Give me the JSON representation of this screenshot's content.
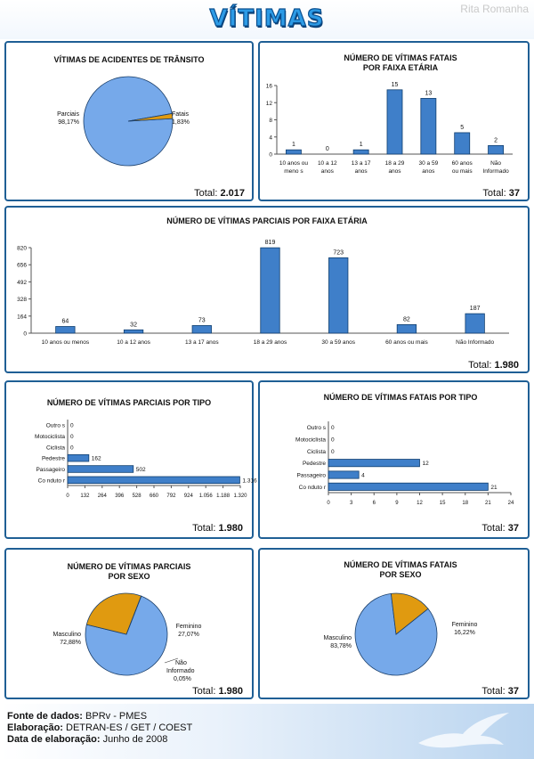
{
  "header": {
    "title": "VÍTIMAS",
    "watermark": "Rita Romanha"
  },
  "panels": {
    "p1": {
      "title_lines": [
        "VÍTIMAS DE ACIDENTES DE TRÂNSITO"
      ],
      "total_label": "Total:",
      "total_value": "2.017"
    },
    "p2": {
      "title_lines": [
        "NÚMERO DE VÍTIMAS FATAIS",
        "POR FAIXA ETÁRIA"
      ],
      "total_label": "Total:",
      "total_value": "37"
    },
    "p3": {
      "title_lines": [
        "NÚMERO DE VÍTIMAS PARCIAIS POR FAIXA ETÁRIA"
      ],
      "total_label": "Total:",
      "total_value": "1.980"
    },
    "p4": {
      "title_lines": [
        "NÚMERO DE VÍTIMAS PARCIAIS POR TIPO"
      ],
      "total_label": "Total:",
      "total_value": "1.980"
    },
    "p5": {
      "title_lines": [
        "NÚMERO DE VÍTIMAS FATAIS POR TIPO"
      ],
      "total_label": "Total:",
      "total_value": "37"
    },
    "p6": {
      "title_lines": [
        "NÚMERO DE VÍTIMAS PARCIAIS",
        "POR SEXO"
      ],
      "total_label": "Total:",
      "total_value": "1.980"
    },
    "p7": {
      "title_lines": [
        "NÚMERO DE VÍTIMAS FATAIS",
        "POR SEXO"
      ],
      "total_label": "Total:",
      "total_value": "37"
    }
  },
  "footer": {
    "source_label": "Fonte de dados:",
    "source_value": "BPRv - PMES",
    "prepared_label": "Elaboração:",
    "prepared_value": "DETRAN-ES / GET / COEST",
    "date_label": "Data de elaboração:",
    "date_value": "Junho de 2008"
  },
  "colors": {
    "bar": "#3f7fc9",
    "pie_main": "#76a9ea",
    "pie_secondary": "#e09a10",
    "border": "#1f5f95",
    "title_blue": "#2d9be6"
  },
  "chart_data": [
    {
      "type": "pie",
      "title": "VÍTIMAS DE ACIDENTES DE TRÂNSITO",
      "slices": [
        {
          "name": "Parciais",
          "label": "98,17%",
          "value": 98.17
        },
        {
          "name": "Fatais",
          "label": "1,83%",
          "value": 1.83
        }
      ]
    },
    {
      "type": "bar",
      "orientation": "vertical",
      "title": "NÚMERO DE VÍTIMAS FATAIS POR FAIXA ETÁRIA",
      "categories": [
        [
          "10 anos ou",
          "meno s"
        ],
        [
          "10 a 12",
          "anos"
        ],
        [
          "13 a 17",
          "anos"
        ],
        [
          "18 a 29",
          "anos"
        ],
        [
          "30 a 59",
          "anos"
        ],
        [
          "60 anos",
          "ou mais"
        ],
        [
          "Não",
          "Informado"
        ]
      ],
      "values": [
        1,
        0,
        1,
        15,
        13,
        5,
        2
      ],
      "value_labels": [
        "1",
        "0",
        "1",
        "15",
        "13",
        "5",
        "2"
      ],
      "yticks": [
        "0",
        "4",
        "8",
        "12",
        "16"
      ],
      "ylim": [
        0,
        16
      ]
    },
    {
      "type": "bar",
      "orientation": "vertical",
      "title": "NÚMERO DE VÍTIMAS PARCIAIS POR FAIXA ETÁRIA",
      "categories": [
        [
          "10 anos ou menos"
        ],
        [
          "10 a 12 anos"
        ],
        [
          "13 a 17 anos"
        ],
        [
          "18 a 29 anos"
        ],
        [
          "30 a 59 anos"
        ],
        [
          "60 anos ou mais"
        ],
        [
          "Não Informado"
        ]
      ],
      "values": [
        64,
        32,
        73,
        819,
        723,
        82,
        187
      ],
      "value_labels": [
        "64",
        "32",
        "73",
        "819",
        "723",
        "82",
        "187"
      ],
      "yticks": [
        "0",
        "164",
        "328",
        "492",
        "656",
        "820"
      ],
      "ylim": [
        0,
        820
      ]
    },
    {
      "type": "bar",
      "orientation": "horizontal",
      "title": "NÚMERO DE VÍTIMAS PARCIAIS POR TIPO",
      "categories": [
        "Outro s",
        "Motociclista",
        "Ciclista",
        "Pedestre",
        "Passageiro",
        "Co nduto r"
      ],
      "values": [
        0,
        0,
        0,
        162,
        502,
        1316
      ],
      "value_labels": [
        "0",
        "0",
        "0",
        "162",
        "502",
        "1.316"
      ],
      "xticks": [
        "0",
        "132",
        "264",
        "396",
        "528",
        "660",
        "792",
        "924",
        "1.056",
        "1.188",
        "1.320"
      ],
      "xlim": [
        0,
        1320
      ]
    },
    {
      "type": "bar",
      "orientation": "horizontal",
      "title": "NÚMERO DE VÍTIMAS FATAIS POR TIPO",
      "categories": [
        "Outro s",
        "Motociclista",
        "Ciclista",
        "Pedestre",
        "Passageiro",
        "Co nduto r"
      ],
      "values": [
        0,
        0,
        0,
        12,
        4,
        21
      ],
      "value_labels": [
        "0",
        "0",
        "0",
        "12",
        "4",
        "21"
      ],
      "xticks": [
        "0",
        "3",
        "6",
        "9",
        "12",
        "15",
        "18",
        "21",
        "24"
      ],
      "xlim": [
        0,
        24
      ]
    },
    {
      "type": "pie",
      "title": "NÚMERO DE VÍTIMAS PARCIAIS POR SEXO",
      "slices": [
        {
          "name": "Masculino",
          "label": "72,88%",
          "value": 72.88
        },
        {
          "name": "Feminino",
          "label": "27,07%",
          "value": 27.07
        },
        {
          "name": "Não Informado",
          "label": "0,05%",
          "value": 0.05
        }
      ]
    },
    {
      "type": "pie",
      "title": "NÚMERO DE VÍTIMAS FATAIS POR SEXO",
      "slices": [
        {
          "name": "Masculino",
          "label": "83,78%",
          "value": 83.78
        },
        {
          "name": "Feminino",
          "label": "16,22%",
          "value": 16.22
        }
      ]
    }
  ]
}
